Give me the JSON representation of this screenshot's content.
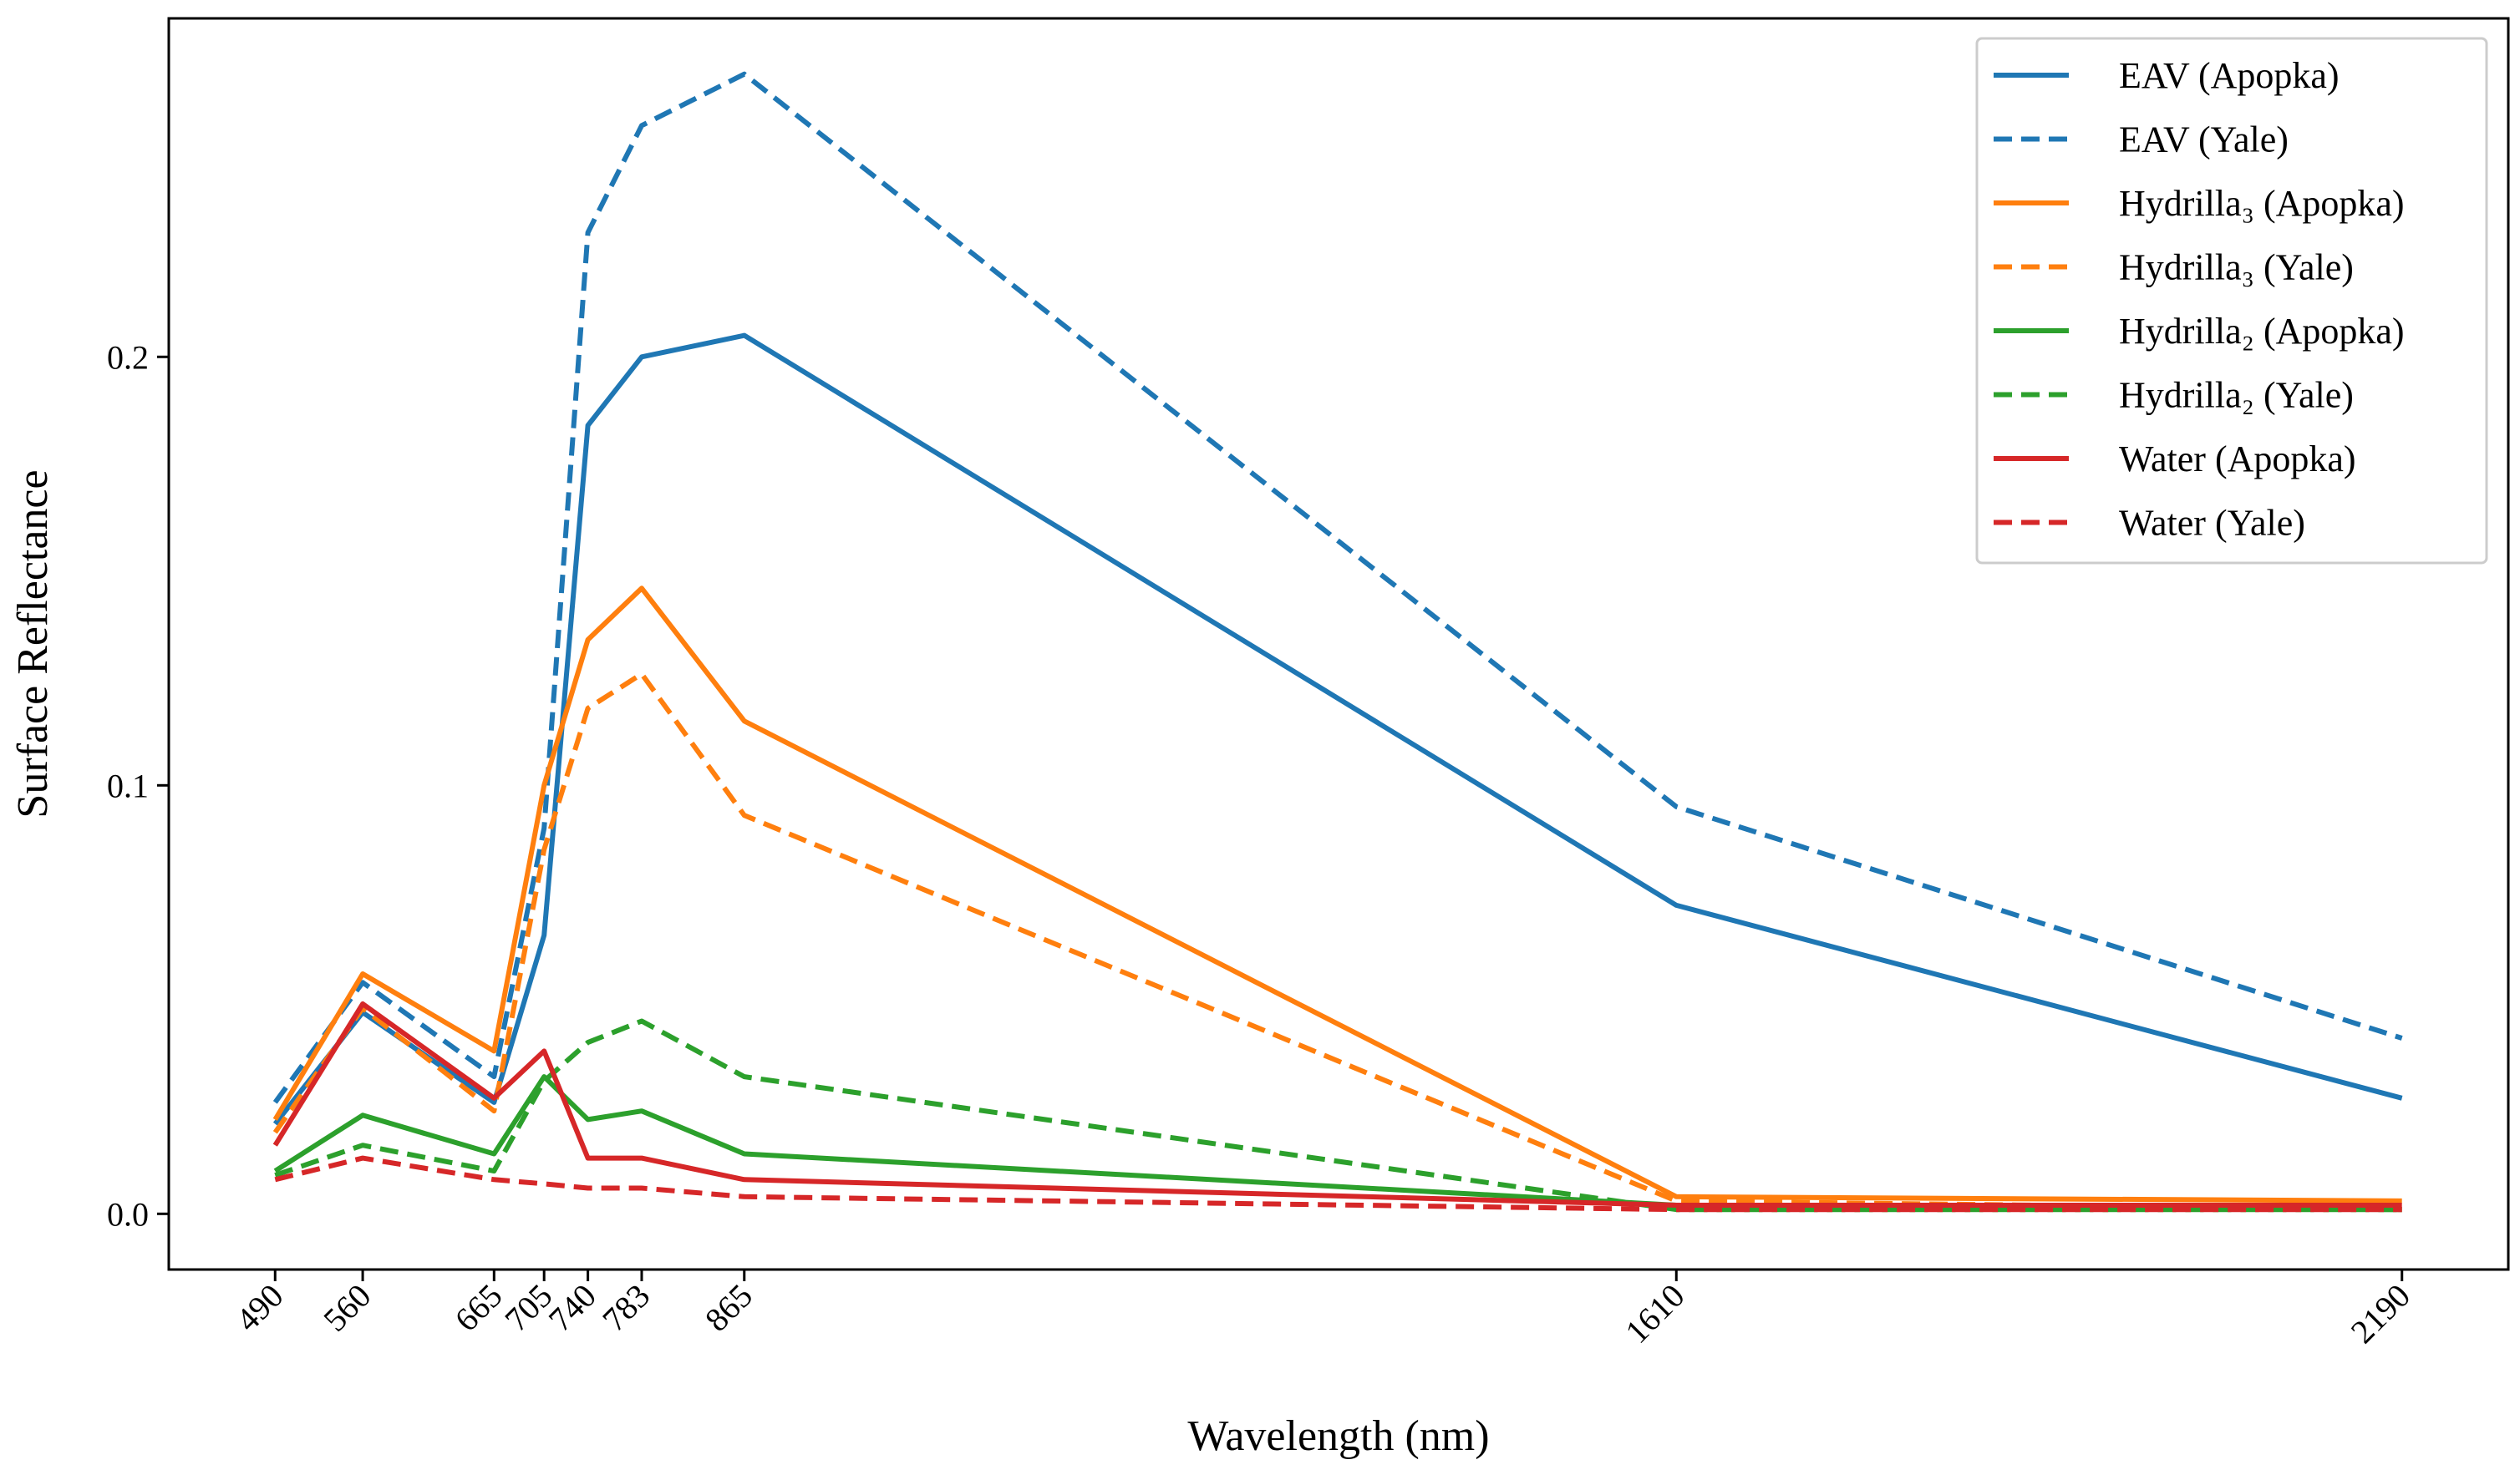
{
  "chart_data": {
    "type": "line",
    "title": "",
    "xlabel": "Wavelength (nm)",
    "ylabel": "Surface Reflectance",
    "x": [
      490,
      560,
      665,
      705,
      740,
      783,
      865,
      1610,
      2190
    ],
    "xticks": [
      490,
      560,
      665,
      705,
      740,
      783,
      865,
      1610,
      2190
    ],
    "xtick_labels": [
      "490",
      "560",
      "665",
      "705",
      "740",
      "783",
      "865",
      "1610",
      "2190"
    ],
    "xlim": [
      405,
      2275
    ],
    "ylim": [
      -0.013,
      0.279
    ],
    "yticks": [
      0.0,
      0.1,
      0.2
    ],
    "ytick_labels": [
      "0.0",
      "0.1",
      "0.2"
    ],
    "grid": false,
    "legend_position": "top-right",
    "series": [
      {
        "name": "EAV (Apopka)",
        "color": "#1f77b4",
        "dash": "solid",
        "values": [
          0.021,
          0.047,
          0.026,
          0.065,
          0.184,
          0.2,
          0.205,
          0.072,
          0.027
        ]
      },
      {
        "name": "EAV (Yale)",
        "color": "#1f77b4",
        "dash": "dashed",
        "values": [
          0.026,
          0.054,
          0.032,
          0.09,
          0.229,
          0.254,
          0.266,
          0.095,
          0.041
        ]
      },
      {
        "name": "Hydrilla₃ (Apopka)",
        "color": "#ff7f0e",
        "dash": "solid",
        "values": [
          0.022,
          0.056,
          0.038,
          0.1,
          0.134,
          0.146,
          0.115,
          0.004,
          0.003
        ]
      },
      {
        "name": "Hydrilla₃ (Yale)",
        "color": "#ff7f0e",
        "dash": "dashed",
        "values": [
          0.019,
          0.048,
          0.024,
          0.085,
          0.118,
          0.126,
          0.093,
          0.003,
          0.001
        ]
      },
      {
        "name": "Hydrilla₂ (Apopka)",
        "color": "#2ca02c",
        "dash": "solid",
        "values": [
          0.01,
          0.023,
          0.014,
          0.032,
          0.022,
          0.024,
          0.014,
          0.002,
          0.001
        ]
      },
      {
        "name": "Hydrilla₂ (Yale)",
        "color": "#2ca02c",
        "dash": "dashed",
        "values": [
          0.009,
          0.016,
          0.01,
          0.031,
          0.04,
          0.045,
          0.032,
          0.001,
          0.001
        ]
      },
      {
        "name": "Water (Apopka)",
        "color": "#d62728",
        "dash": "solid",
        "values": [
          0.016,
          0.049,
          0.027,
          0.038,
          0.013,
          0.013,
          0.008,
          0.002,
          0.002
        ]
      },
      {
        "name": "Water (Yale)",
        "color": "#d62728",
        "dash": "dashed",
        "values": [
          0.008,
          0.013,
          0.008,
          0.007,
          0.006,
          0.006,
          0.004,
          0.001,
          0.001
        ]
      }
    ]
  }
}
